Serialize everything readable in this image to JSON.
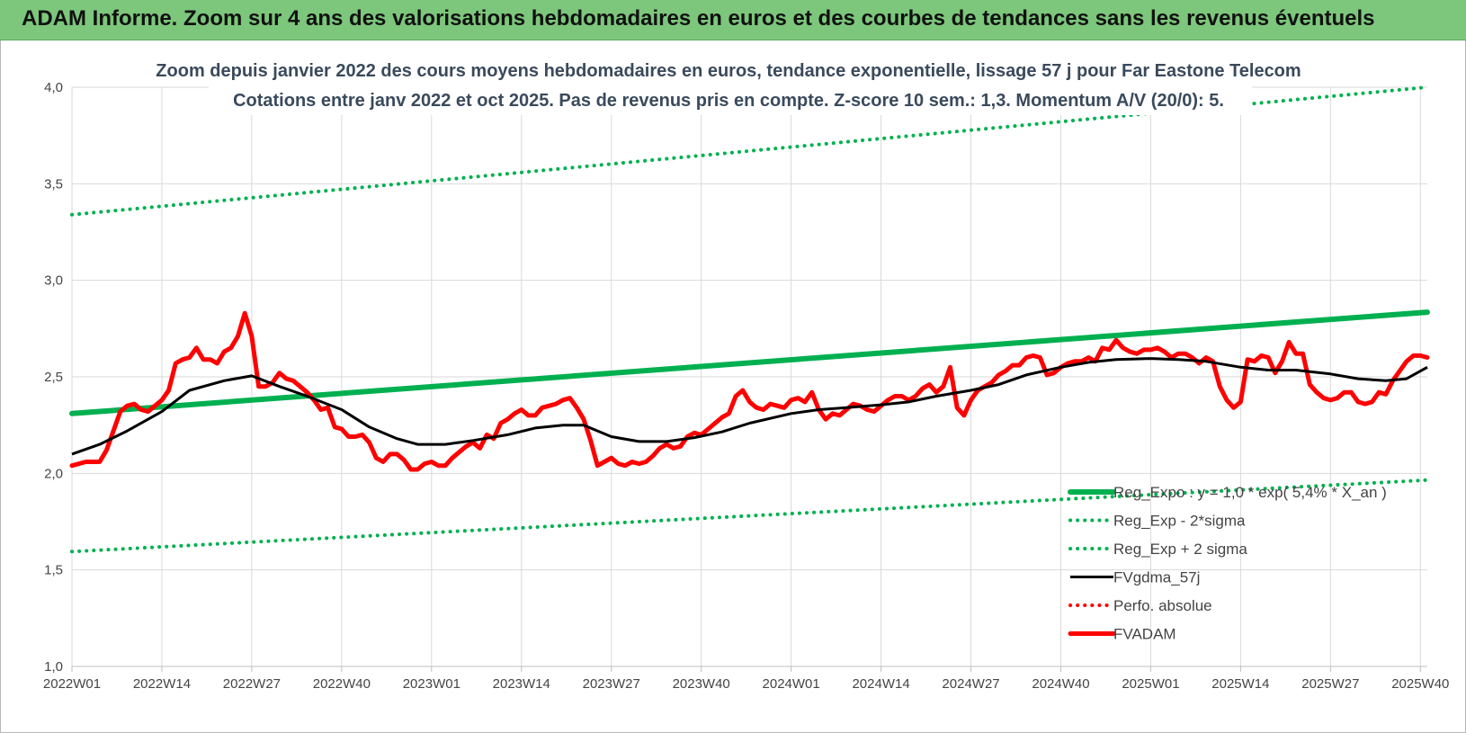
{
  "header": {
    "title": "ADAM Informe. Zoom sur 4 ans des valorisations hebdomadaires en euros et des courbes de tendances sans les revenus éventuels"
  },
  "chart_data": {
    "type": "line",
    "subtitle_line1": "Zoom depuis janvier 2022 des cours moyens hebdomadaires en euros, tendance exponentielle, lissage 57 j pour Far Eastone Telecom",
    "subtitle_line2": "Cotations entre janv 2022 et oct 2025. Pas de revenus pris en compte. Z-score 10 sem.: 1,3. Momentum A/V (20/0): 5.",
    "ylim": [
      1.0,
      4.0
    ],
    "yticks": [
      "1,0",
      "1,5",
      "2,0",
      "2,5",
      "3,0",
      "3,5",
      "4,0"
    ],
    "xlim": [
      0,
      196
    ],
    "xticks": [
      {
        "label": "2022W01",
        "week": 0
      },
      {
        "label": "2022W14",
        "week": 13
      },
      {
        "label": "2022W27",
        "week": 26
      },
      {
        "label": "2022W40",
        "week": 39
      },
      {
        "label": "2023W01",
        "week": 52
      },
      {
        "label": "2023W14",
        "week": 65
      },
      {
        "label": "2023W27",
        "week": 78
      },
      {
        "label": "2023W40",
        "week": 91
      },
      {
        "label": "2024W01",
        "week": 104
      },
      {
        "label": "2024W14",
        "week": 117
      },
      {
        "label": "2024W27",
        "week": 130
      },
      {
        "label": "2024W40",
        "week": 143
      },
      {
        "label": "2025W01",
        "week": 156
      },
      {
        "label": "2025W14",
        "week": 169
      },
      {
        "label": "2025W27",
        "week": 182
      },
      {
        "label": "2025W40",
        "week": 195
      }
    ],
    "grid": true,
    "legend_position": "bottom-right",
    "series": [
      {
        "name": "Reg_Expo : y = 1,0 * exp( 5,4% * X_an )",
        "color": "#00b050",
        "style": "solid-thick",
        "x": [
          0,
          196
        ],
        "y": [
          2.31,
          2.835
        ]
      },
      {
        "name": "Reg_Exp - 2*sigma",
        "color": "#00b050",
        "style": "dotted",
        "x": [
          0,
          196
        ],
        "y": [
          1.595,
          1.965
        ]
      },
      {
        "name": "Reg_Exp + 2 sigma",
        "color": "#00b050",
        "style": "dotted",
        "x": [
          0,
          196
        ],
        "y": [
          3.34,
          4.0
        ]
      },
      {
        "name": "FVgdma_57j",
        "color": "#000000",
        "style": "solid",
        "x": [
          0,
          4,
          8,
          13,
          17,
          22,
          26,
          30,
          34,
          39,
          43,
          47,
          50,
          54,
          58,
          63,
          67,
          71,
          74,
          78,
          82,
          86,
          90,
          94,
          98,
          104,
          108,
          112,
          117,
          121,
          125,
          130,
          134,
          138,
          143,
          147,
          151,
          156,
          160,
          164,
          169,
          173,
          177,
          182,
          186,
          190,
          193,
          196
        ],
        "y": [
          2.1,
          2.15,
          2.22,
          2.32,
          2.43,
          2.48,
          2.505,
          2.45,
          2.4,
          2.33,
          2.24,
          2.18,
          2.15,
          2.15,
          2.17,
          2.2,
          2.235,
          2.25,
          2.25,
          2.19,
          2.165,
          2.165,
          2.185,
          2.215,
          2.26,
          2.31,
          2.33,
          2.34,
          2.355,
          2.37,
          2.4,
          2.43,
          2.46,
          2.51,
          2.55,
          2.575,
          2.59,
          2.595,
          2.59,
          2.58,
          2.55,
          2.535,
          2.535,
          2.515,
          2.49,
          2.48,
          2.49,
          2.55
        ]
      },
      {
        "name": "Perfo. absolue",
        "color": "#ff0000",
        "style": "dotted",
        "x": [],
        "y": []
      },
      {
        "name": "FVADAM",
        "color": "#ff0000",
        "style": "solid-thick",
        "x": [
          0,
          1,
          2,
          3,
          4,
          5,
          6,
          7,
          8,
          9,
          10,
          11,
          12,
          13,
          14,
          15,
          16,
          17,
          18,
          19,
          20,
          21,
          22,
          23,
          24,
          25,
          26,
          27,
          28,
          29,
          30,
          31,
          32,
          33,
          34,
          35,
          36,
          37,
          38,
          39,
          40,
          41,
          42,
          43,
          44,
          45,
          46,
          47,
          48,
          49,
          50,
          51,
          52,
          53,
          54,
          55,
          56,
          57,
          58,
          59,
          60,
          61,
          62,
          63,
          64,
          65,
          66,
          67,
          68,
          69,
          70,
          71,
          72,
          73,
          74,
          75,
          76,
          77,
          78,
          79,
          80,
          81,
          82,
          83,
          84,
          85,
          86,
          87,
          88,
          89,
          90,
          91,
          92,
          93,
          94,
          95,
          96,
          97,
          98,
          99,
          100,
          101,
          102,
          103,
          104,
          105,
          106,
          107,
          108,
          109,
          110,
          111,
          112,
          113,
          114,
          115,
          116,
          117,
          118,
          119,
          120,
          121,
          122,
          123,
          124,
          125,
          126,
          127,
          128,
          129,
          130,
          131,
          132,
          133,
          134,
          135,
          136,
          137,
          138,
          139,
          140,
          141,
          142,
          143,
          144,
          145,
          146,
          147,
          148,
          149,
          150,
          151,
          152,
          153,
          154,
          155,
          156,
          157,
          158,
          159,
          160,
          161,
          162,
          163,
          164,
          165,
          166,
          167,
          168,
          169,
          170,
          171,
          172,
          173,
          174,
          175,
          176,
          177,
          178,
          179,
          180,
          181,
          182,
          183,
          184,
          185,
          186,
          187,
          188,
          189,
          190,
          191,
          192,
          193,
          194,
          195,
          196
        ],
        "y": [
          2.04,
          2.05,
          2.06,
          2.06,
          2.06,
          2.12,
          2.22,
          2.32,
          2.35,
          2.36,
          2.33,
          2.32,
          2.35,
          2.38,
          2.43,
          2.57,
          2.59,
          2.6,
          2.65,
          2.59,
          2.59,
          2.57,
          2.63,
          2.65,
          2.71,
          2.83,
          2.71,
          2.45,
          2.45,
          2.47,
          2.52,
          2.49,
          2.48,
          2.45,
          2.42,
          2.38,
          2.33,
          2.34,
          2.24,
          2.23,
          2.19,
          2.19,
          2.2,
          2.16,
          2.08,
          2.06,
          2.1,
          2.1,
          2.07,
          2.02,
          2.02,
          2.05,
          2.06,
          2.04,
          2.04,
          2.08,
          2.11,
          2.14,
          2.16,
          2.13,
          2.2,
          2.18,
          2.26,
          2.28,
          2.31,
          2.33,
          2.3,
          2.3,
          2.34,
          2.35,
          2.36,
          2.38,
          2.39,
          2.34,
          2.28,
          2.17,
          2.04,
          2.06,
          2.08,
          2.05,
          2.04,
          2.06,
          2.05,
          2.06,
          2.09,
          2.13,
          2.15,
          2.13,
          2.14,
          2.19,
          2.21,
          2.2,
          2.23,
          2.26,
          2.29,
          2.31,
          2.4,
          2.43,
          2.37,
          2.34,
          2.33,
          2.36,
          2.35,
          2.34,
          2.38,
          2.39,
          2.37,
          2.42,
          2.33,
          2.28,
          2.31,
          2.3,
          2.33,
          2.36,
          2.35,
          2.33,
          2.32,
          2.35,
          2.38,
          2.4,
          2.4,
          2.38,
          2.4,
          2.44,
          2.46,
          2.42,
          2.45,
          2.55,
          2.34,
          2.3,
          2.38,
          2.43,
          2.45,
          2.47,
          2.51,
          2.53,
          2.56,
          2.56,
          2.6,
          2.61,
          2.6,
          2.51,
          2.52,
          2.55,
          2.57,
          2.58,
          2.58,
          2.6,
          2.58,
          2.65,
          2.64,
          2.69,
          2.65,
          2.63,
          2.62,
          2.64,
          2.64,
          2.65,
          2.63,
          2.6,
          2.62,
          2.62,
          2.6,
          2.57,
          2.6,
          2.58,
          2.45,
          2.38,
          2.34,
          2.37,
          2.59,
          2.58,
          2.61,
          2.6,
          2.52,
          2.58,
          2.68,
          2.62,
          2.62,
          2.46,
          2.42,
          2.39,
          2.38,
          2.39,
          2.42,
          2.42,
          2.37,
          2.36,
          2.37,
          2.42,
          2.41,
          2.48,
          2.53,
          2.58,
          2.61,
          2.61,
          2.6
        ]
      }
    ]
  }
}
